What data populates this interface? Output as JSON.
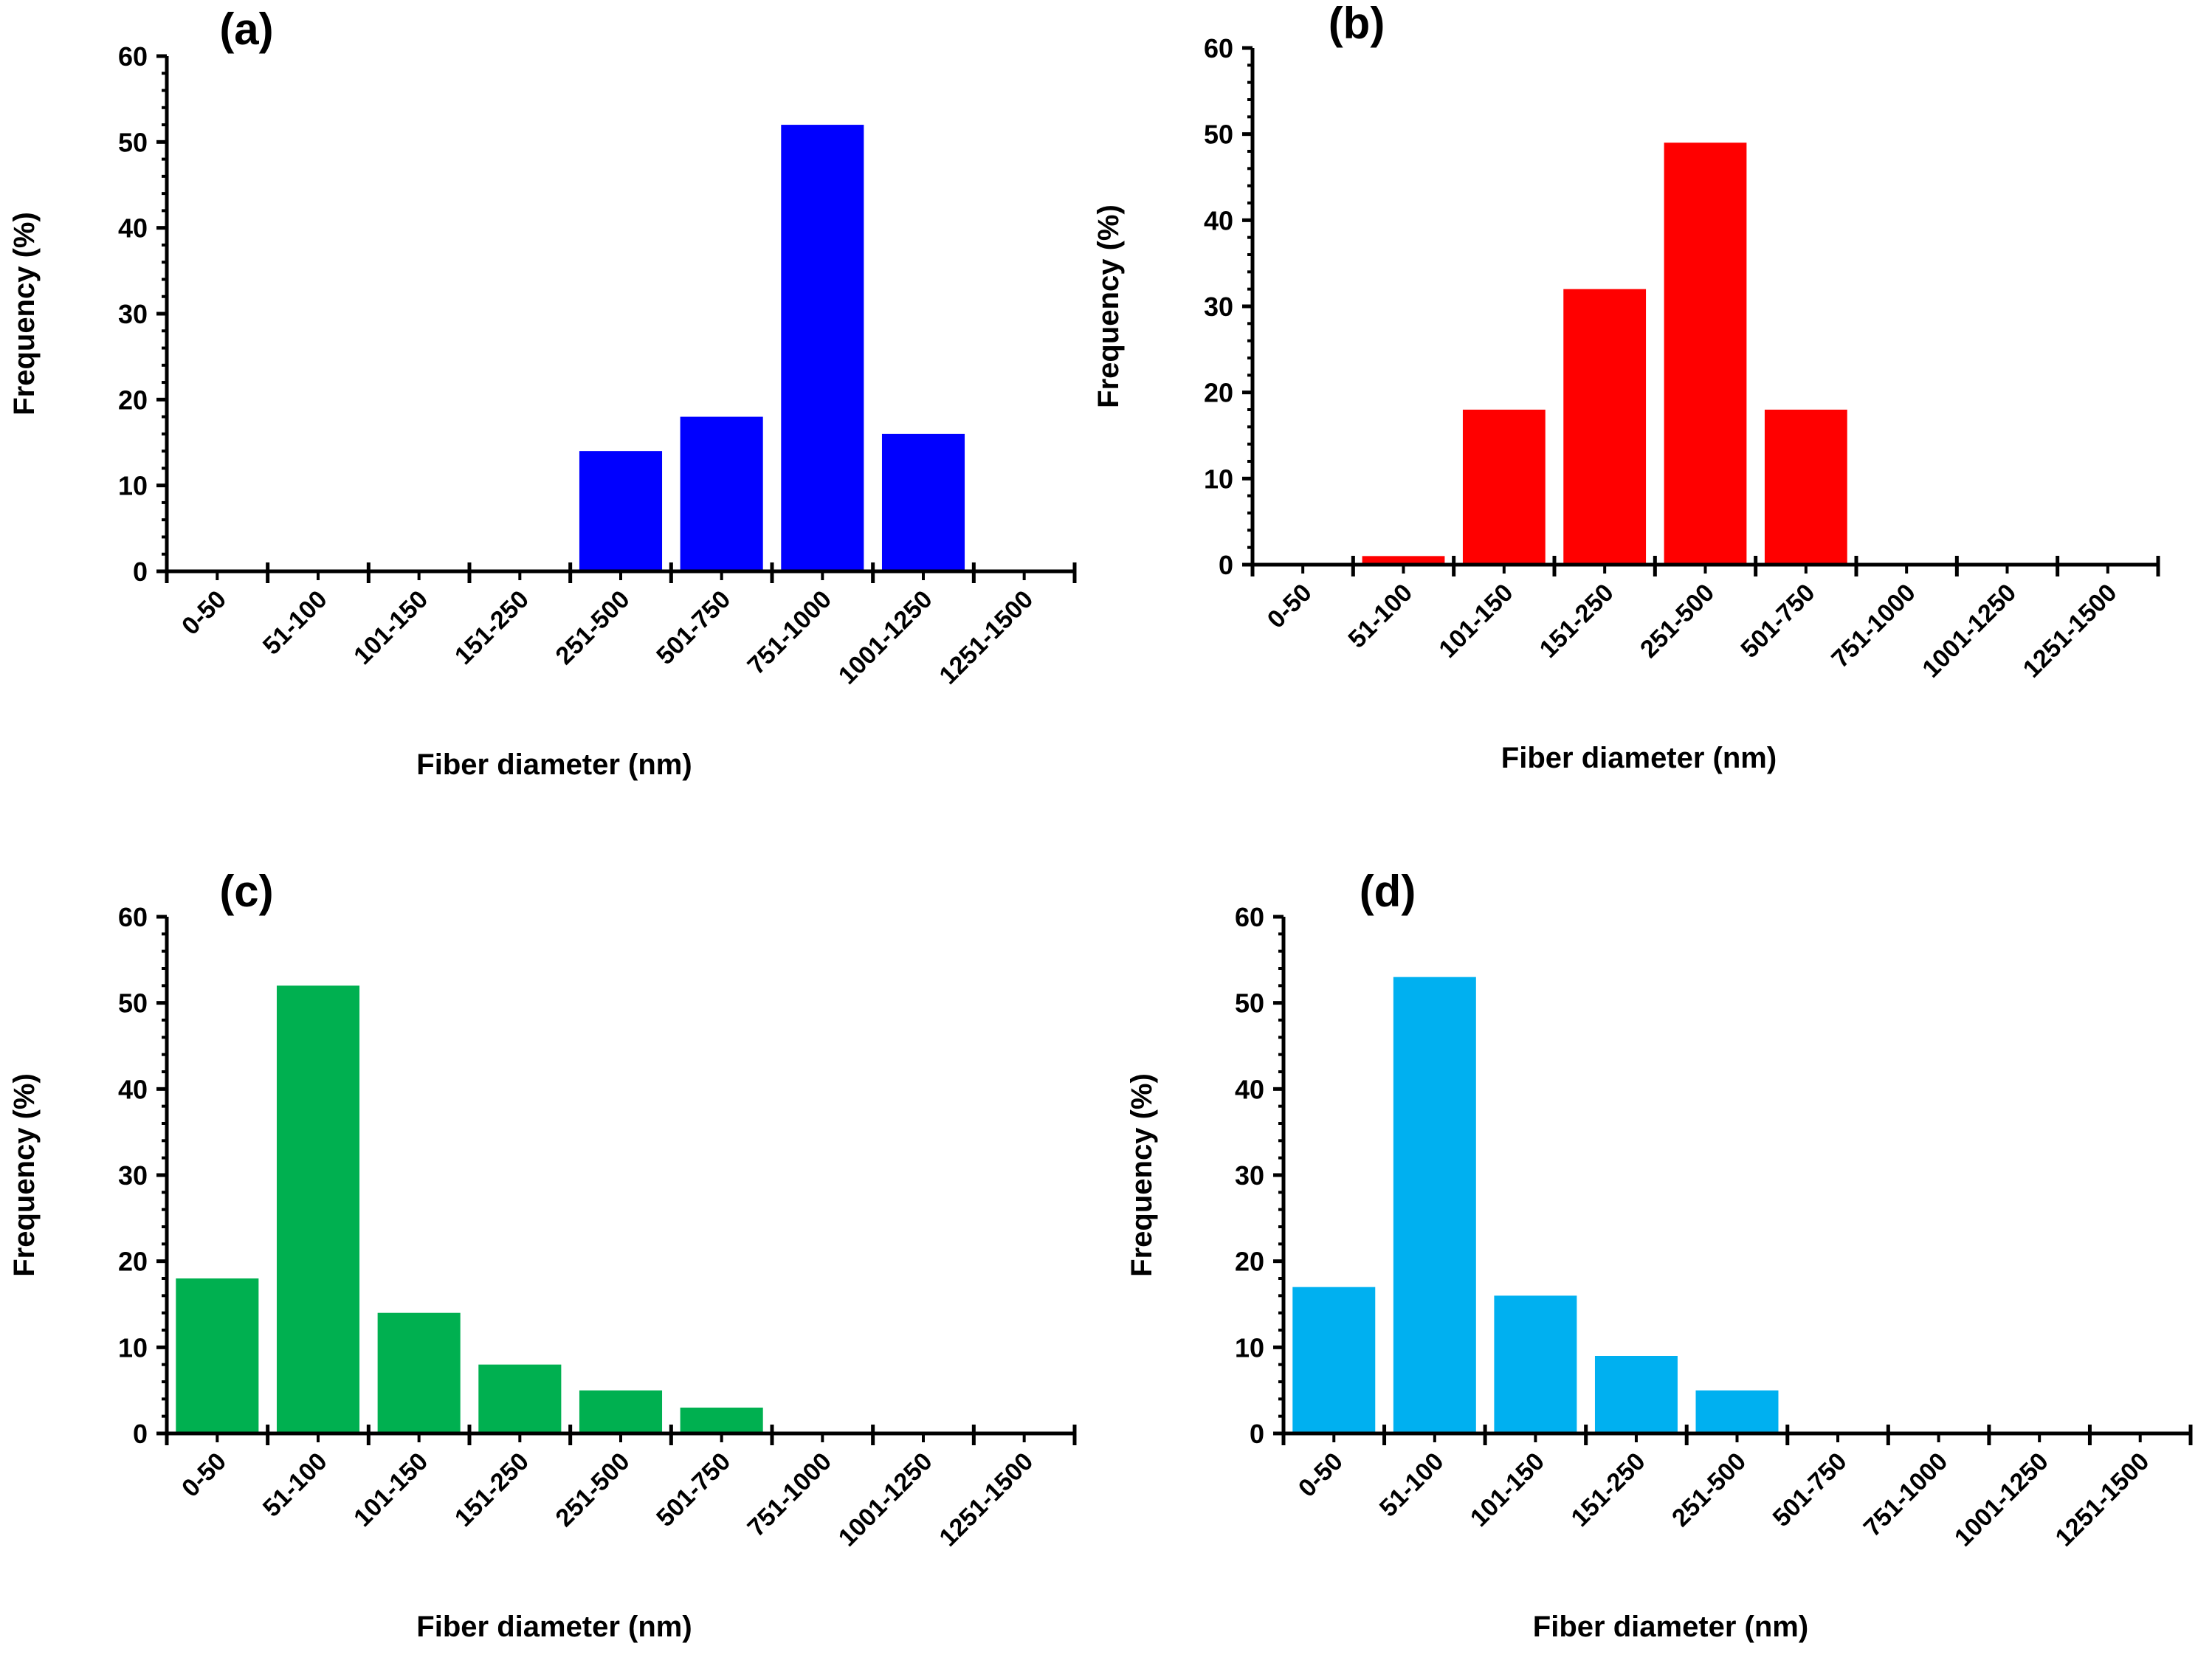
{
  "chart_data": [
    {
      "type": "bar",
      "title": "(a)",
      "xlabel": "Fiber diameter (nm)",
      "ylabel": "Frequency (%)",
      "ylim": [
        0,
        60
      ],
      "yticks": [
        "0",
        "10",
        "20",
        "30",
        "40",
        "50",
        "60"
      ],
      "categories": [
        "0-50",
        "51-100",
        "101-150",
        "151-250",
        "251-500",
        "501-750",
        "751-1000",
        "1001-1250",
        "1251-1500"
      ],
      "values": [
        0,
        0,
        0,
        0,
        14,
        18,
        52,
        16,
        0
      ],
      "color": "#0000FF"
    },
    {
      "type": "bar",
      "title": "(b)",
      "xlabel": "Fiber diameter (nm)",
      "ylabel": "Frequency (%)",
      "ylim": [
        0,
        60
      ],
      "yticks": [
        "0",
        "10",
        "20",
        "30",
        "40",
        "50",
        "60"
      ],
      "categories": [
        "0-50",
        "51-100",
        "101-150",
        "151-250",
        "251-500",
        "501-750",
        "751-1000",
        "1001-1250",
        "1251-1500"
      ],
      "values": [
        0,
        1,
        18,
        32,
        49,
        18,
        0,
        0,
        0
      ],
      "color": "#FF0000"
    },
    {
      "type": "bar",
      "title": "(c)",
      "xlabel": "Fiber diameter (nm)",
      "ylabel": "Frequency (%)",
      "ylim": [
        0,
        60
      ],
      "yticks": [
        "0",
        "10",
        "20",
        "30",
        "40",
        "50",
        "60"
      ],
      "categories": [
        "0-50",
        "51-100",
        "101-150",
        "151-250",
        "251-500",
        "501-750",
        "751-1000",
        "1001-1250",
        "1251-1500"
      ],
      "values": [
        18,
        52,
        14,
        8,
        5,
        3,
        0,
        0,
        0
      ],
      "color": "#00B050"
    },
    {
      "type": "bar",
      "title": "(d)",
      "xlabel": "Fiber diameter (nm)",
      "ylabel": "Frequency (%)",
      "ylim": [
        0,
        60
      ],
      "yticks": [
        "0",
        "10",
        "20",
        "30",
        "40",
        "50",
        "60"
      ],
      "categories": [
        "0-50",
        "51-100",
        "101-150",
        "151-250",
        "251-500",
        "501-750",
        "751-1000",
        "1001-1250",
        "1251-1500"
      ],
      "values": [
        17,
        53,
        16,
        9,
        5,
        0,
        0,
        0,
        0
      ],
      "color": "#00B0F0"
    }
  ]
}
